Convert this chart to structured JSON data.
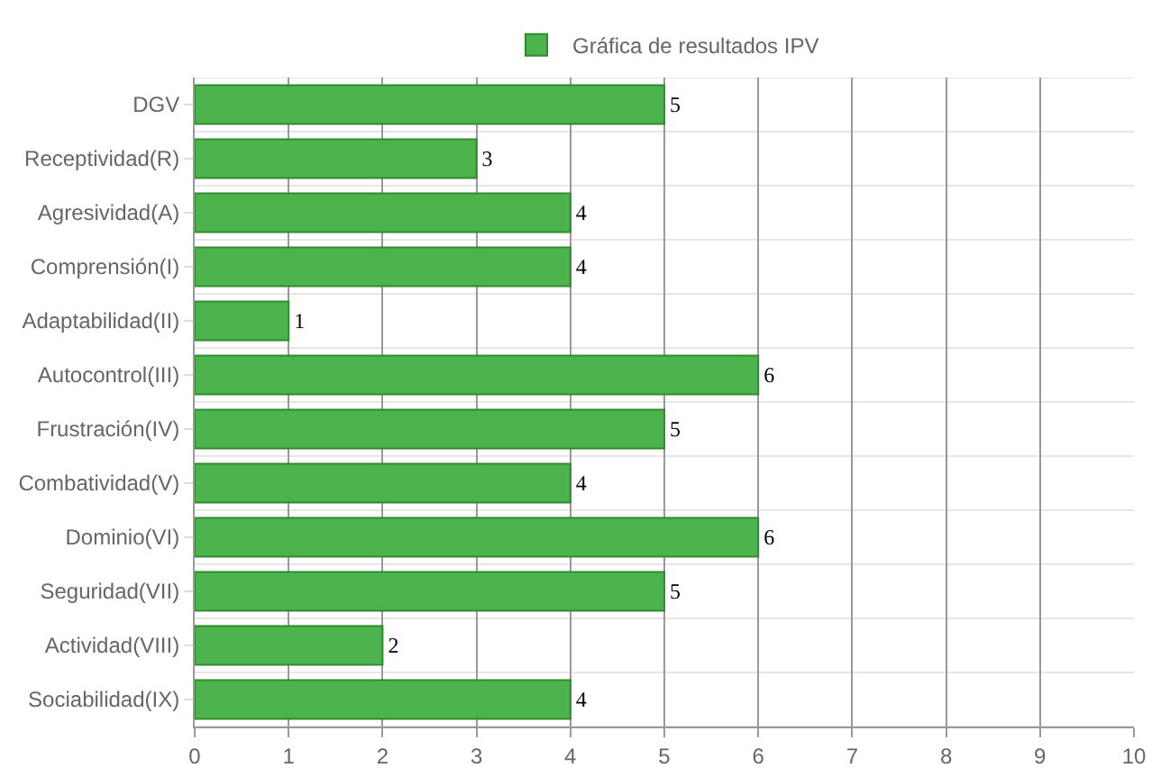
{
  "chart_data": {
    "type": "bar",
    "orientation": "horizontal",
    "categories": [
      "DGV",
      "Receptividad(R)",
      "Agresividad(A)",
      "Comprensión(I)",
      "Adaptabilidad(II)",
      "Autocontrol(III)",
      "Frustración(IV)",
      "Combatividad(V)",
      "Dominio(VI)",
      "Seguridad(VII)",
      "Actividad(VIII)",
      "Sociabilidad(IX)"
    ],
    "series": [
      {
        "name": "Gráfica de resultados IPV",
        "color": "#4db34d",
        "values": [
          5,
          3,
          4,
          4,
          1,
          6,
          5,
          4,
          6,
          5,
          2,
          4
        ]
      }
    ],
    "xlim": [
      0,
      10
    ],
    "xticks": [
      0,
      1,
      2,
      3,
      4,
      5,
      6,
      7,
      8,
      9,
      10
    ],
    "grid": true,
    "legend": "top",
    "data_labels": true
  }
}
